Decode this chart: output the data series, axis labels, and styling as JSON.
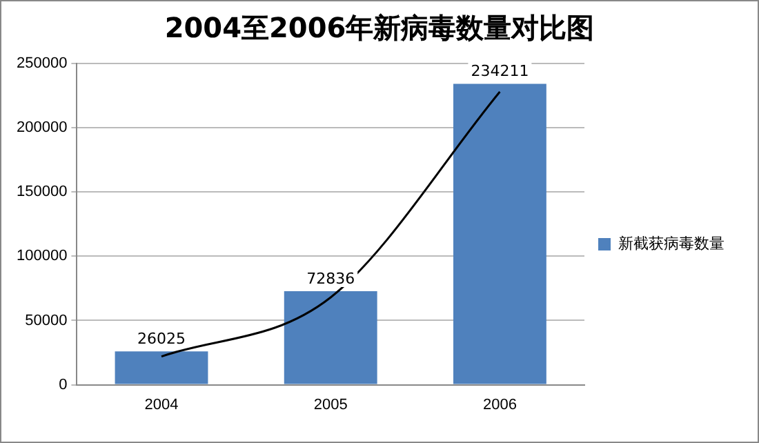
{
  "chart_data": {
    "type": "bar",
    "title": "2004至2006年新病毒数量对比图",
    "categories": [
      "2004",
      "2005",
      "2006"
    ],
    "series": [
      {
        "name": "新截获病毒数量",
        "color": "#4f81bd",
        "values": [
          26025,
          72836,
          234211
        ],
        "value_labels": [
          "26025",
          "72836",
          "234211"
        ]
      },
      {
        "type": "line",
        "color": "#000000",
        "values": [
          22000,
          68000,
          228000
        ]
      }
    ],
    "ylim": [
      0,
      250000
    ],
    "yticks": [
      0,
      50000,
      100000,
      150000,
      200000,
      250000
    ],
    "grid": "y",
    "legend": "right",
    "marker": "none"
  }
}
